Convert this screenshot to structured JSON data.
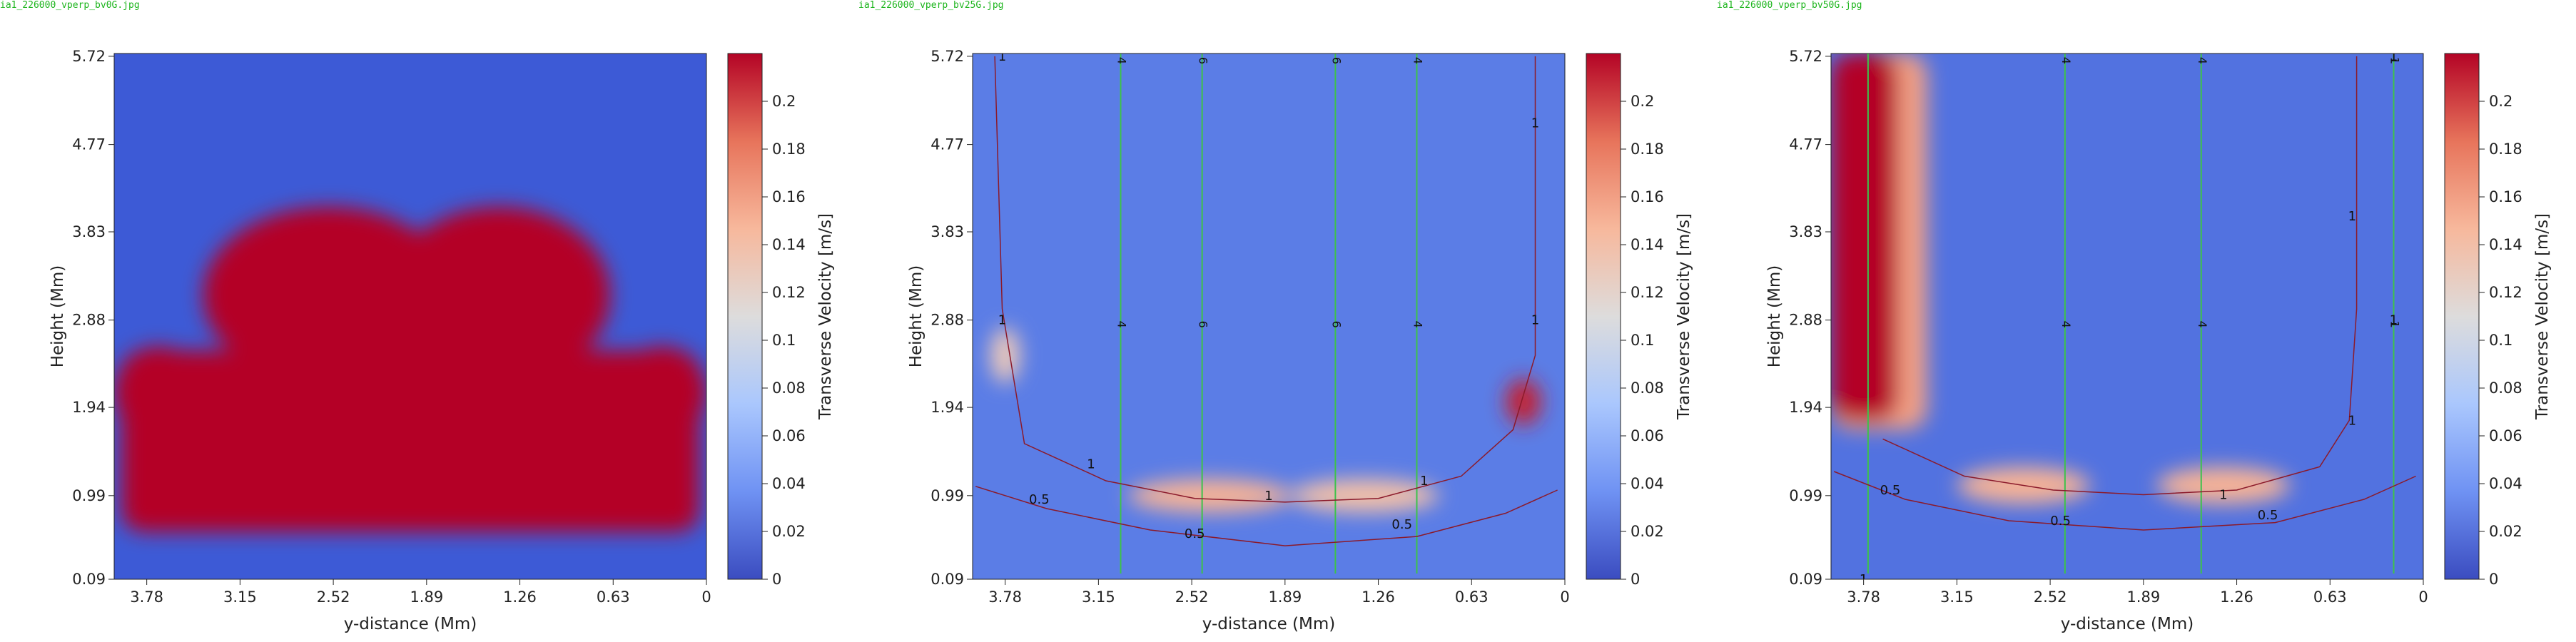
{
  "chart_data": [
    {
      "type": "heatmap",
      "file_label": "ia1_226000_vperp_bv0G.jpg",
      "xlabel": "y-distance (Mm)",
      "ylabel": "Height (Mm)",
      "x_ticks": [
        "3.78",
        "3.15",
        "2.52",
        "1.89",
        "1.26",
        "0.63",
        "0"
      ],
      "y_ticks": [
        "0.09",
        "0.99",
        "1.94",
        "2.88",
        "3.83",
        "4.77",
        "5.72"
      ],
      "xlim": [
        4.0,
        0
      ],
      "ylim": [
        0.09,
        5.75
      ],
      "colorbar": {
        "label": "Transverse Velocity [m/s]",
        "ticks": [
          "0",
          "0.02",
          "0.04",
          "0.06",
          "0.08",
          "0.1",
          "0.12",
          "0.14",
          "0.16",
          "0.18",
          "0.2"
        ],
        "range": [
          0,
          0.22
        ],
        "colors": [
          "#3b4cc0",
          "#6f92f3",
          "#aac7fd",
          "#dddcdc",
          "#f7b89c",
          "#e7745b",
          "#b40426"
        ]
      },
      "background": "#3d5ad6",
      "regions": [
        {
          "shape": "ellipse",
          "cx": 2.55,
          "cy": 3.15,
          "rx": 0.85,
          "ry": 0.95,
          "value": 0.22
        },
        {
          "shape": "ellipse",
          "cx": 1.4,
          "cy": 3.15,
          "rx": 0.75,
          "ry": 0.95,
          "value": 0.22
        },
        {
          "shape": "rect",
          "x0": 3.95,
          "x1": 0.05,
          "y0": 0.6,
          "y1": 2.55,
          "value": 0.22
        },
        {
          "shape": "ellipse",
          "cx": 3.7,
          "cy": 2.1,
          "rx": 0.3,
          "ry": 0.5,
          "value": 0.22
        },
        {
          "shape": "ellipse",
          "cx": 0.3,
          "cy": 2.1,
          "rx": 0.3,
          "ry": 0.5,
          "value": 0.22
        }
      ],
      "contours": [],
      "field_lines": []
    },
    {
      "type": "heatmap",
      "file_label": "ia1_226000_vperp_bv25G.jpg",
      "xlabel": "y-distance (Mm)",
      "ylabel": "Height (Mm)",
      "x_ticks": [
        "3.78",
        "3.15",
        "2.52",
        "1.89",
        "1.26",
        "0.63",
        "0"
      ],
      "y_ticks": [
        "0.09",
        "0.99",
        "1.94",
        "2.88",
        "3.83",
        "4.77",
        "5.72"
      ],
      "xlim": [
        4.0,
        0
      ],
      "ylim": [
        0.09,
        5.75
      ],
      "colorbar": {
        "label": "Transverse Velocity [m/s]",
        "ticks": [
          "0",
          "0.02",
          "0.04",
          "0.06",
          "0.08",
          "0.1",
          "0.12",
          "0.14",
          "0.16",
          "0.18",
          "0.2"
        ],
        "range": [
          0,
          0.22
        ],
        "colors": [
          "#3b4cc0",
          "#6f92f3",
          "#aac7fd",
          "#dddcdc",
          "#f7b89c",
          "#e7745b",
          "#b40426"
        ]
      },
      "background": "#5b7de6",
      "regions": [
        {
          "shape": "ellipse",
          "cx": 2.4,
          "cy": 0.99,
          "rx": 0.55,
          "ry": 0.18,
          "value": 0.15
        },
        {
          "shape": "ellipse",
          "cx": 1.35,
          "cy": 0.99,
          "rx": 0.5,
          "ry": 0.18,
          "value": 0.14
        },
        {
          "shape": "ellipse",
          "cx": 0.28,
          "cy": 2.0,
          "rx": 0.12,
          "ry": 0.25,
          "value": 0.21
        },
        {
          "shape": "ellipse",
          "cx": 3.78,
          "cy": 2.5,
          "rx": 0.1,
          "ry": 0.3,
          "value": 0.13
        }
      ],
      "contours": [
        {
          "label": "1",
          "points": [
            [
              3.85,
              5.72
            ],
            [
              3.8,
              3.0
            ],
            [
              3.65,
              1.55
            ],
            [
              3.1,
              1.15
            ],
            [
              2.5,
              0.96
            ],
            [
              1.89,
              0.92
            ],
            [
              1.26,
              0.96
            ],
            [
              0.7,
              1.2
            ],
            [
              0.35,
              1.7
            ],
            [
              0.2,
              2.5
            ],
            [
              0.2,
              5.72
            ]
          ]
        },
        {
          "label": "0.5",
          "points": [
            [
              3.98,
              1.09
            ],
            [
              3.5,
              0.85
            ],
            [
              2.8,
              0.62
            ],
            [
              1.89,
              0.45
            ],
            [
              1.0,
              0.55
            ],
            [
              0.4,
              0.8
            ],
            [
              0.05,
              1.05
            ]
          ]
        }
      ],
      "contour_labels": [
        {
          "text": "1",
          "x": 3.8,
          "y": 5.72
        },
        {
          "text": "1",
          "x": 3.8,
          "y": 2.88
        },
        {
          "text": "1",
          "x": 3.2,
          "y": 1.33
        },
        {
          "text": "1",
          "x": 2.0,
          "y": 0.99
        },
        {
          "text": "1",
          "x": 0.95,
          "y": 1.15
        },
        {
          "text": "1",
          "x": 0.2,
          "y": 2.88
        },
        {
          "text": "1",
          "x": 0.2,
          "y": 5.0
        },
        {
          "text": "0.5",
          "x": 3.55,
          "y": 0.95
        },
        {
          "text": "0.5",
          "x": 2.5,
          "y": 0.58
        },
        {
          "text": "0.5",
          "x": 1.1,
          "y": 0.68
        }
      ],
      "field_lines": [
        {
          "x": 3.0,
          "label": "4"
        },
        {
          "x": 2.45,
          "label": "6"
        },
        {
          "x": 1.55,
          "label": "6"
        },
        {
          "x": 1.0,
          "label": "4"
        }
      ]
    },
    {
      "type": "heatmap",
      "file_label": "ia1_226000_vperp_bv50G.jpg",
      "xlabel": "y-distance (Mm)",
      "ylabel": "Height (Mm)",
      "x_ticks": [
        "3.78",
        "3.15",
        "2.52",
        "1.89",
        "1.26",
        "0.63",
        "0"
      ],
      "y_ticks": [
        "0.09",
        "0.99",
        "1.94",
        "2.88",
        "3.83",
        "4.77",
        "5.72"
      ],
      "xlim": [
        4.0,
        0
      ],
      "ylim": [
        0.09,
        5.75
      ],
      "colorbar": {
        "label": "Transverse Velocity [m/s]",
        "ticks": [
          "0",
          "0.02",
          "0.04",
          "0.06",
          "0.08",
          "0.1",
          "0.12",
          "0.14",
          "0.16",
          "0.18",
          "0.2"
        ],
        "range": [
          0,
          0.22
        ],
        "colors": [
          "#3b4cc0",
          "#6f92f3",
          "#aac7fd",
          "#dddcdc",
          "#f7b89c",
          "#e7745b",
          "#b40426"
        ]
      },
      "background": "#5272e0",
      "regions": [
        {
          "shape": "rect",
          "x0": 4.0,
          "x1": 3.35,
          "y0": 1.7,
          "y1": 5.75,
          "value": 0.16
        },
        {
          "shape": "rect",
          "x0": 4.0,
          "x1": 3.55,
          "y0": 1.8,
          "y1": 5.75,
          "value": 0.22
        },
        {
          "shape": "ellipse",
          "cx": 2.7,
          "cy": 1.1,
          "rx": 0.45,
          "ry": 0.2,
          "value": 0.15
        },
        {
          "shape": "ellipse",
          "cx": 1.35,
          "cy": 1.1,
          "rx": 0.45,
          "ry": 0.2,
          "value": 0.15
        }
      ],
      "contours": [
        {
          "label": "1",
          "points": [
            [
              3.65,
              1.6
            ],
            [
              3.1,
              1.2
            ],
            [
              2.5,
              1.05
            ],
            [
              1.89,
              1.0
            ],
            [
              1.26,
              1.05
            ],
            [
              0.7,
              1.3
            ],
            [
              0.5,
              1.8
            ],
            [
              0.45,
              3.0
            ],
            [
              0.45,
              5.72
            ]
          ]
        },
        {
          "label": "0.5",
          "points": [
            [
              3.98,
              1.25
            ],
            [
              3.5,
              0.95
            ],
            [
              2.8,
              0.72
            ],
            [
              1.89,
              0.62
            ],
            [
              1.0,
              0.7
            ],
            [
              0.4,
              0.95
            ],
            [
              0.05,
              1.2
            ]
          ]
        }
      ],
      "contour_labels": [
        {
          "text": "1",
          "x": 1.35,
          "y": 1.0
        },
        {
          "text": "1",
          "x": 0.48,
          "y": 4.0
        },
        {
          "text": "1",
          "x": 0.48,
          "y": 1.8
        },
        {
          "text": "1",
          "x": 0.2,
          "y": 5.72
        },
        {
          "text": "1",
          "x": 0.2,
          "y": 2.88
        },
        {
          "text": "1",
          "x": 3.78,
          "y": 0.09
        },
        {
          "text": "0.5",
          "x": 3.6,
          "y": 1.05
        },
        {
          "text": "0.5",
          "x": 2.45,
          "y": 0.72
        },
        {
          "text": "0.5",
          "x": 1.05,
          "y": 0.78
        }
      ],
      "field_lines": [
        {
          "x": 3.75,
          "label": ""
        },
        {
          "x": 2.42,
          "label": "4"
        },
        {
          "x": 1.5,
          "label": "4"
        },
        {
          "x": 0.2,
          "label": "1"
        }
      ]
    }
  ]
}
